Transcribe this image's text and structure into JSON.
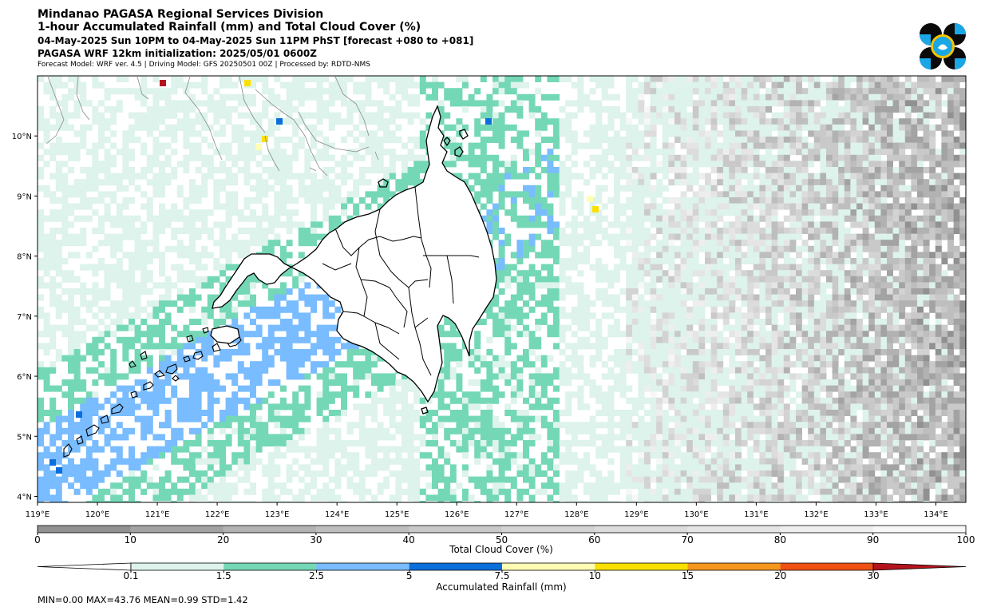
{
  "header": {
    "title": "Mindanao PAGASA Regional Services Division",
    "subtitle": "1-hour Accumulated Rainfall (mm) and Total Cloud Cover (%)",
    "valid_time": "04-May-2025 Sun 10PM to 04-May-2025 Sun 11PM PhST [forecast +080 to +081]",
    "initialization": "PAGASA WRF 12km initialization: 2025/05/01 0600Z",
    "model_info": "Forecast Model: WRF ver. 4.5 | Driving Model: GFS 20250501 00Z | Processed by: RDTD-NMS"
  },
  "logo": {
    "name": "pagasa-logo",
    "colors": [
      "#000000",
      "#00a0e0",
      "#f5c400"
    ]
  },
  "map": {
    "lon_range": [
      119,
      134.5
    ],
    "lat_range": [
      3.9,
      11.0
    ],
    "lon_ticks": [
      "119°E",
      "120°E",
      "121°E",
      "122°E",
      "123°E",
      "124°E",
      "125°E",
      "126°E",
      "127°E",
      "128°E",
      "129°E",
      "130°E",
      "131°E",
      "132°E",
      "133°E",
      "134°E"
    ],
    "lat_ticks": [
      "10°N",
      "9°N",
      "8°N",
      "7°N",
      "6°N",
      "5°N",
      "4°N"
    ]
  },
  "cloud_colorbar": {
    "label": "Total Cloud Cover (%)",
    "ticks": [
      "0",
      "10",
      "20",
      "30",
      "40",
      "50",
      "60",
      "70",
      "80",
      "90",
      "100"
    ],
    "colors": [
      "#919191",
      "#a3a3a3",
      "#b2b2b2",
      "#bebebe",
      "#c9c9c9",
      "#d3d3d3",
      "#dcdcdc",
      "#e5e5e5",
      "#eeeeee",
      "#f7f7f7"
    ]
  },
  "rain_colorbar": {
    "label": "Accumulated Rainfall (mm)",
    "ticks": [
      "0.1",
      "1.5",
      "2.5",
      "5",
      "7.5",
      "10",
      "15",
      "20",
      "30"
    ],
    "colors": [
      "#ffffff",
      "#ddf3ec",
      "#74d8b6",
      "#79bcff",
      "#0a6fdc",
      "#ffffb4",
      "#fae000",
      "#f5961e",
      "#f05014",
      "#b4141e"
    ]
  },
  "stats": "MIN=0.00   MAX=43.76   MEAN=0.99   STD=1.42"
}
